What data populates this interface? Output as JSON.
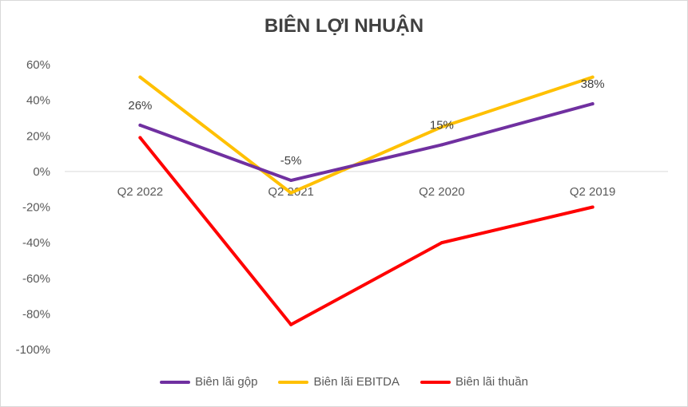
{
  "chart_data": {
    "type": "line",
    "title": "BIÊN LỢI NHUẬN",
    "categories": [
      "Q2 2022",
      "Q2 2021",
      "Q2 2020",
      "Q2 2019"
    ],
    "ylim": [
      -100,
      60
    ],
    "yticks": [
      60,
      40,
      20,
      0,
      -20,
      -40,
      -60,
      -80,
      -100
    ],
    "ytick_labels": [
      "60%",
      "40%",
      "20%",
      "0%",
      "-20%",
      "-40%",
      "-60%",
      "-80%",
      "-100%"
    ],
    "grid": false,
    "legend_position": "bottom",
    "series": [
      {
        "name": "Biên lãi gộp",
        "color": "#7030a0",
        "values": [
          26,
          -5,
          15,
          38
        ],
        "labels": [
          "26%",
          "-5%",
          "15%",
          "38%"
        ]
      },
      {
        "name": "Biên lãi EBITDA",
        "color": "#ffc000",
        "values": [
          53,
          -12,
          25,
          53
        ]
      },
      {
        "name": "Biên lãi thuần",
        "color": "#ff0000",
        "values": [
          19,
          -86,
          -40,
          -20
        ]
      }
    ]
  }
}
